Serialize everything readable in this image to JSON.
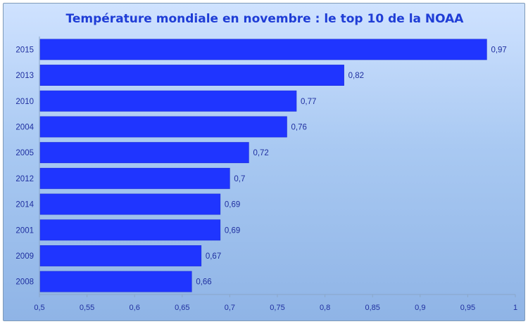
{
  "chart_data": {
    "type": "bar",
    "orientation": "horizontal",
    "title": "Température mondiale en novembre : le top 10 de la NOAA",
    "categories": [
      "2015",
      "2013",
      "2010",
      "2004",
      "2005",
      "2012",
      "2014",
      "2001",
      "2009",
      "2008"
    ],
    "values": [
      0.97,
      0.82,
      0.77,
      0.76,
      0.72,
      0.7,
      0.69,
      0.69,
      0.67,
      0.66
    ],
    "value_labels": [
      "0,97",
      "0,82",
      "0,77",
      "0,76",
      "0,72",
      "0,7",
      "0,69",
      "0,69",
      "0,67",
      "0,66"
    ],
    "xlim": [
      0.5,
      1
    ],
    "x_ticks": [
      0.5,
      0.55,
      0.6,
      0.65,
      0.7,
      0.75,
      0.8,
      0.85,
      0.9,
      0.95,
      1
    ],
    "x_tick_labels": [
      "0,5",
      "0,55",
      "0,6",
      "0,65",
      "0,7",
      "0,75",
      "0,8",
      "0,85",
      "0,9",
      "0,95",
      "1"
    ],
    "grid": false,
    "legend": "none",
    "colors": {
      "bar": "#1f35ff",
      "text": "#1f2fa0",
      "title": "#1f3dd6",
      "background_top": "#cfe2ff",
      "background_bottom": "#8fb4e6"
    }
  }
}
